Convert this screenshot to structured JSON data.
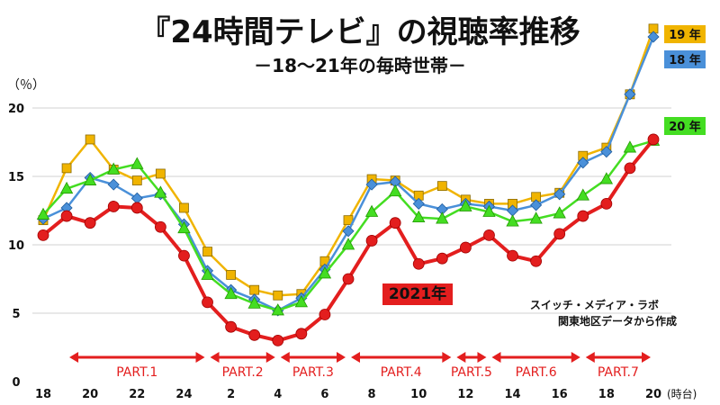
{
  "chart_data": {
    "type": "line",
    "title": "『24時間テレビ』の視聴率推移",
    "subtitle": "－18～21年の毎時世帯－",
    "ylabel": "（％）",
    "xlabel": "(時台)",
    "ylim": [
      0,
      20
    ],
    "yticks": [
      0,
      5,
      10,
      15,
      20
    ],
    "x_ticks": [
      "18",
      "20",
      "22",
      "24",
      "2",
      "4",
      "6",
      "8",
      "10",
      "12",
      "14",
      "16",
      "18",
      "20"
    ],
    "x": [
      18,
      19,
      20,
      21,
      22,
      23,
      24,
      25,
      26,
      27,
      28,
      29,
      30,
      31,
      32,
      33,
      34,
      35,
      36,
      37,
      38,
      39,
      40,
      41,
      42,
      43,
      44
    ],
    "series": [
      {
        "name": "19 年",
        "color": "#f0b400",
        "marker": "square",
        "values": [
          11.8,
          15.6,
          17.7,
          15.5,
          14.7,
          15.2,
          12.7,
          9.5,
          7.8,
          6.7,
          6.3,
          6.4,
          8.8,
          11.8,
          14.8,
          14.7,
          13.6,
          14.3,
          13.3,
          13.0,
          13.0,
          13.5,
          13.8,
          16.5,
          17.1,
          21.0,
          25.8
        ]
      },
      {
        "name": "18 年",
        "color": "#4a90d9",
        "marker": "diamond",
        "values": [
          11.9,
          12.7,
          14.9,
          14.4,
          13.4,
          13.7,
          11.5,
          8.1,
          6.7,
          6.0,
          5.2,
          6.1,
          8.2,
          11.0,
          14.4,
          14.6,
          13.0,
          12.6,
          13.0,
          12.8,
          12.5,
          12.9,
          13.7,
          16.0,
          16.8,
          21.0,
          25.2
        ]
      },
      {
        "name": "20 年",
        "color": "#44dd22",
        "marker": "triangle",
        "values": [
          12.2,
          14.1,
          14.7,
          15.5,
          15.9,
          13.8,
          11.2,
          7.8,
          6.4,
          5.7,
          5.2,
          5.8,
          7.9,
          10.0,
          12.4,
          13.9,
          12.0,
          11.9,
          12.8,
          12.4,
          11.7,
          11.9,
          12.3,
          13.6,
          14.8,
          17.1,
          17.6
        ]
      },
      {
        "name": "2021年",
        "color": "#e31e1e",
        "marker": "circle",
        "values": [
          10.7,
          12.1,
          11.6,
          12.8,
          12.7,
          11.3,
          9.2,
          5.8,
          4.0,
          3.4,
          3.0,
          3.5,
          4.9,
          7.5,
          10.3,
          11.6,
          8.6,
          9.0,
          9.8,
          10.7,
          9.2,
          8.8,
          10.8,
          12.1,
          13.0,
          15.6,
          17.7
        ]
      }
    ],
    "parts": [
      {
        "label": "PART.1",
        "from": 19,
        "to": 25
      },
      {
        "label": "PART.2",
        "from": 25,
        "to": 28
      },
      {
        "label": "PART.3",
        "from": 28,
        "to": 31
      },
      {
        "label": "PART.4",
        "from": 31,
        "to": 35.5
      },
      {
        "label": "PART.5",
        "from": 35.5,
        "to": 37
      },
      {
        "label": "PART.6",
        "from": 37,
        "to": 41
      },
      {
        "label": "PART.7",
        "from": 41,
        "to": 44
      }
    ],
    "annotations": [
      "スイッチ・メディア・ラボ",
      "関東地区データから作成"
    ],
    "grid": true
  }
}
